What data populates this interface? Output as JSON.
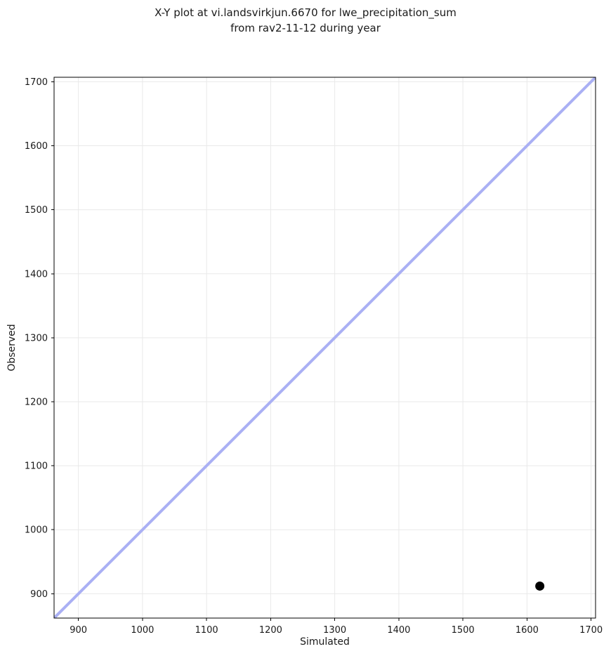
{
  "title": {
    "line1": "X-Y plot at vi.landsvirkjun.6670 for lwe_precipitation_sum",
    "line2": "from rav2-11-12 during year"
  },
  "chart_data": {
    "type": "scatter",
    "title": "X-Y plot at vi.landsvirkjun.6670 for lwe_precipitation_sum from rav2-11-12 during year",
    "xlabel": "Simulated",
    "ylabel": "Observed",
    "xlim": [
      862,
      1707
    ],
    "ylim": [
      862,
      1707
    ],
    "xticks": [
      900,
      1000,
      1100,
      1200,
      1300,
      1400,
      1500,
      1600,
      1700
    ],
    "yticks": [
      900,
      1000,
      1100,
      1200,
      1300,
      1400,
      1500,
      1600,
      1700
    ],
    "grid": true,
    "legend": false,
    "series": [
      {
        "name": "identity_line",
        "kind": "line",
        "points": [
          {
            "x": 862,
            "y": 862
          },
          {
            "x": 1707,
            "y": 1707
          }
        ],
        "color": "#aab0f4",
        "line_width": 4
      },
      {
        "name": "observation_point",
        "kind": "scatter",
        "points": [
          {
            "x": 1620,
            "y": 912
          }
        ],
        "color": "#000000",
        "marker": "circle",
        "marker_radius": 6.5
      }
    ],
    "colors": {
      "grid": "#e9e9e9",
      "spine": "#000000",
      "tick": "#000000",
      "text": "#1a1a1a",
      "background": "#ffffff"
    }
  }
}
